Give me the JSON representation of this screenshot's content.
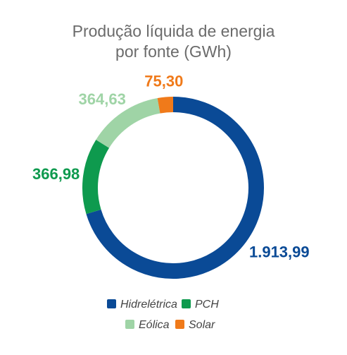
{
  "chart_data": {
    "type": "pie",
    "variant": "donut",
    "title_lines": [
      "Produção líquida de energia",
      "por fonte (GWh)"
    ],
    "categories": [
      "Hidrelétrica",
      "PCH",
      "Eólica",
      "Solar"
    ],
    "values": [
      1913.99,
      366.98,
      364.63,
      75.3
    ],
    "value_labels": [
      "1.913,99",
      "366,98",
      "364,63",
      "75,30"
    ],
    "colors": [
      "#0a4a96",
      "#0e9a4e",
      "#9fd4a6",
      "#f07a1a"
    ],
    "legend": {
      "position": "bottom",
      "rows": [
        [
          "Hidrelétrica",
          "PCH"
        ],
        [
          "Eólica",
          "Solar"
        ]
      ]
    }
  }
}
